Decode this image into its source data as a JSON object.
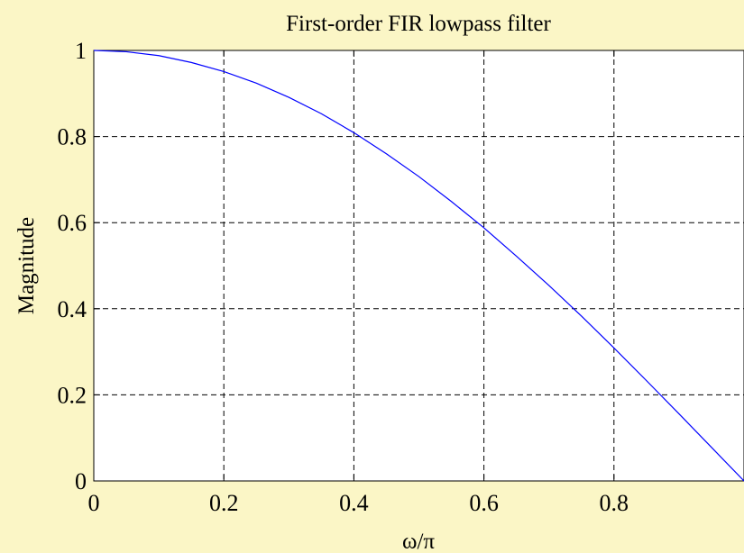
{
  "chart_data": {
    "type": "line",
    "title": "First-order FIR lowpass filter",
    "xlabel": "ω/π",
    "ylabel": "Magnitude",
    "xlim": [
      0,
      1
    ],
    "ylim": [
      0,
      1
    ],
    "xticks": [
      0,
      0.2,
      0.4,
      0.6,
      0.8
    ],
    "xtick_labels": [
      "0",
      "0.2",
      "0.4",
      "0.6",
      "0.8"
    ],
    "yticks": [
      0,
      0.2,
      0.4,
      0.6,
      0.8,
      1
    ],
    "ytick_labels": [
      "0",
      "0.2",
      "0.4",
      "0.6",
      "0.8",
      "1"
    ],
    "grid": true,
    "series": [
      {
        "color": "#0000ff",
        "x": [
          0,
          0.05,
          0.1,
          0.15,
          0.2,
          0.25,
          0.3,
          0.35,
          0.4,
          0.45,
          0.5,
          0.55,
          0.6,
          0.65,
          0.7,
          0.75,
          0.8,
          0.85,
          0.9,
          0.95,
          1
        ],
        "y": [
          1.0,
          0.997,
          0.988,
          0.972,
          0.951,
          0.924,
          0.891,
          0.853,
          0.809,
          0.76,
          0.707,
          0.649,
          0.588,
          0.522,
          0.454,
          0.383,
          0.309,
          0.233,
          0.156,
          0.078,
          0.0
        ]
      }
    ]
  },
  "colors": {
    "background": "#fbf6c6",
    "plot_area": "#ffffff",
    "line": "#0000ff"
  }
}
